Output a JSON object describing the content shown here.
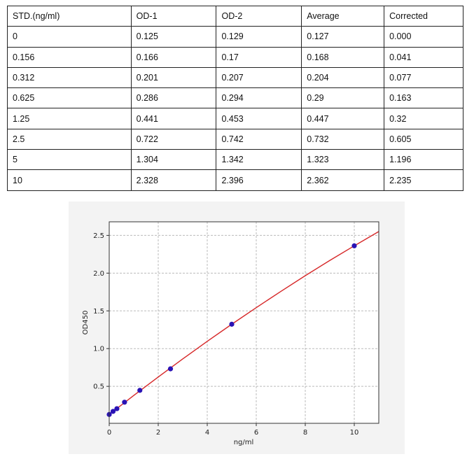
{
  "table": {
    "headers": [
      "STD.(ng/ml)",
      "OD-1",
      "OD-2",
      "Average",
      "Corrected"
    ],
    "rows": [
      [
        "0",
        "0.125",
        "0.129",
        "0.127",
        "0.000"
      ],
      [
        "0.156",
        "0.166",
        "0.17",
        "0.168",
        "0.041"
      ],
      [
        "0.312",
        "0.201",
        "0.207",
        "0.204",
        "0.077"
      ],
      [
        "0.625",
        "0.286",
        "0.294",
        "0.29",
        "0.163"
      ],
      [
        "1.25",
        "0.441",
        "0.453",
        "0.447",
        "0.32"
      ],
      [
        "2.5",
        "0.722",
        "0.742",
        "0.732",
        "0.605"
      ],
      [
        "5",
        "1.304",
        "1.342",
        "1.323",
        "1.196"
      ],
      [
        "10",
        "2.328",
        "2.396",
        "2.362",
        "2.235"
      ]
    ]
  },
  "chart_data": {
    "type": "scatter",
    "xlabel": "ng/ml",
    "ylabel": "OD450",
    "xlim": [
      0,
      11
    ],
    "ylim": [
      0.01,
      2.68
    ],
    "xticks": [
      "0",
      "2",
      "4",
      "6",
      "8",
      "10"
    ],
    "yticks": [
      "0.5",
      "1.0",
      "1.5",
      "2.0",
      "2.5"
    ],
    "grid": true,
    "points": {
      "x": [
        0,
        0.156,
        0.312,
        0.625,
        1.25,
        2.5,
        5,
        10
      ],
      "y": [
        0.127,
        0.168,
        0.204,
        0.29,
        0.447,
        0.732,
        1.323,
        2.362
      ],
      "color": "#2a13b5"
    },
    "fit_curve": {
      "color": "#d62728",
      "x": [
        0,
        1,
        2,
        3,
        4,
        5,
        6,
        7,
        8,
        9,
        10,
        11
      ],
      "y": [
        0.127,
        0.379,
        0.624,
        0.863,
        1.096,
        1.323,
        1.543,
        1.757,
        1.966,
        2.168,
        2.362,
        2.551
      ]
    }
  }
}
